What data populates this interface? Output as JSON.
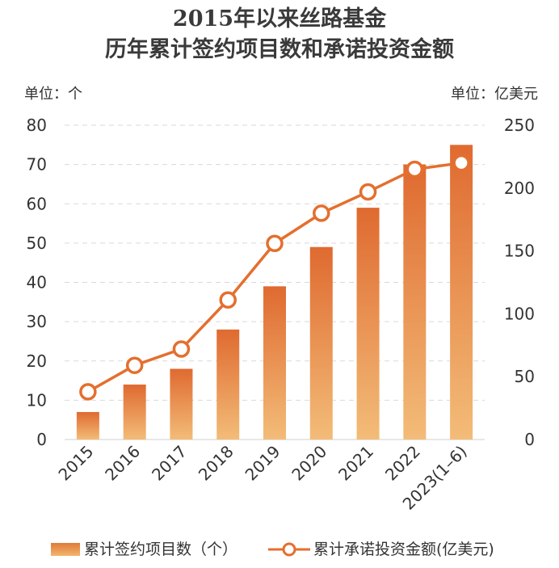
{
  "title_line1": "2015年以来丝路基金",
  "title_line2": "历年累计签约项目数和承诺投资金额",
  "unit_left": "单位：个",
  "unit_right": "单位：亿美元",
  "legend": {
    "bar_label": "累计签约项目数（个）",
    "line_label": "累计承诺投资金额(亿美元)"
  },
  "colors": {
    "bar_top": "#df6a30",
    "bar_bottom": "#f3bc78",
    "line": "#e46f2e",
    "grid": "#d9d9d9"
  },
  "chart_data": {
    "type": "bar+line",
    "categories": [
      "2015",
      "2016",
      "2017",
      "2018",
      "2019",
      "2020",
      "2021",
      "2022",
      "2023(1–6)"
    ],
    "series": [
      {
        "name": "累计签约项目数（个）",
        "type": "bar",
        "axis": "left",
        "values": [
          7,
          14,
          18,
          28,
          39,
          49,
          59,
          70,
          75
        ]
      },
      {
        "name": "累计承诺投资金额(亿美元)",
        "type": "line",
        "axis": "right",
        "values": [
          38,
          59,
          72,
          111,
          156,
          180,
          197,
          215,
          220
        ]
      }
    ],
    "y_left": {
      "min": 0,
      "max": 80,
      "ticks": [
        0,
        10,
        20,
        30,
        40,
        50,
        60,
        70,
        80
      ]
    },
    "y_right": {
      "min": 0,
      "max": 250,
      "ticks": [
        0,
        50,
        100,
        150,
        200,
        250
      ]
    },
    "grid": true,
    "legend_position": "bottom"
  }
}
